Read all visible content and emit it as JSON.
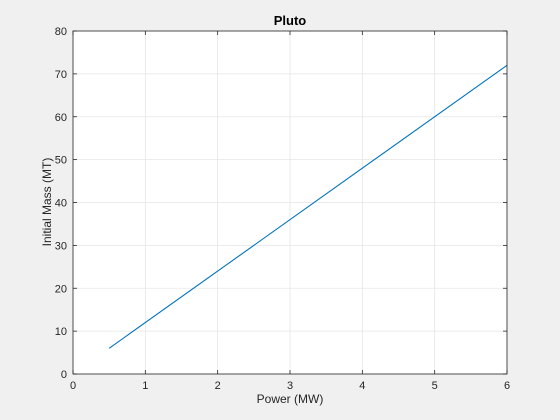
{
  "chart_data": {
    "type": "line",
    "title": "Pluto",
    "xlabel": "Power (MW)",
    "ylabel": "Initial Mass (MT)",
    "xlim": [
      0,
      6
    ],
    "ylim": [
      0,
      80
    ],
    "xticks": [
      0,
      1,
      2,
      3,
      4,
      5,
      6
    ],
    "yticks": [
      0,
      10,
      20,
      30,
      40,
      50,
      60,
      70,
      80
    ],
    "grid": true,
    "legend": "none",
    "series": [
      {
        "x": [
          0.5,
          6
        ],
        "y": [
          6,
          72
        ],
        "color": "#0072bd"
      }
    ]
  },
  "colors": {
    "figure_background": "#f0f0f0",
    "axes_background": "#ffffff",
    "grid": "#e6e6e6",
    "axis": "#262626",
    "line": "#0072bd"
  }
}
